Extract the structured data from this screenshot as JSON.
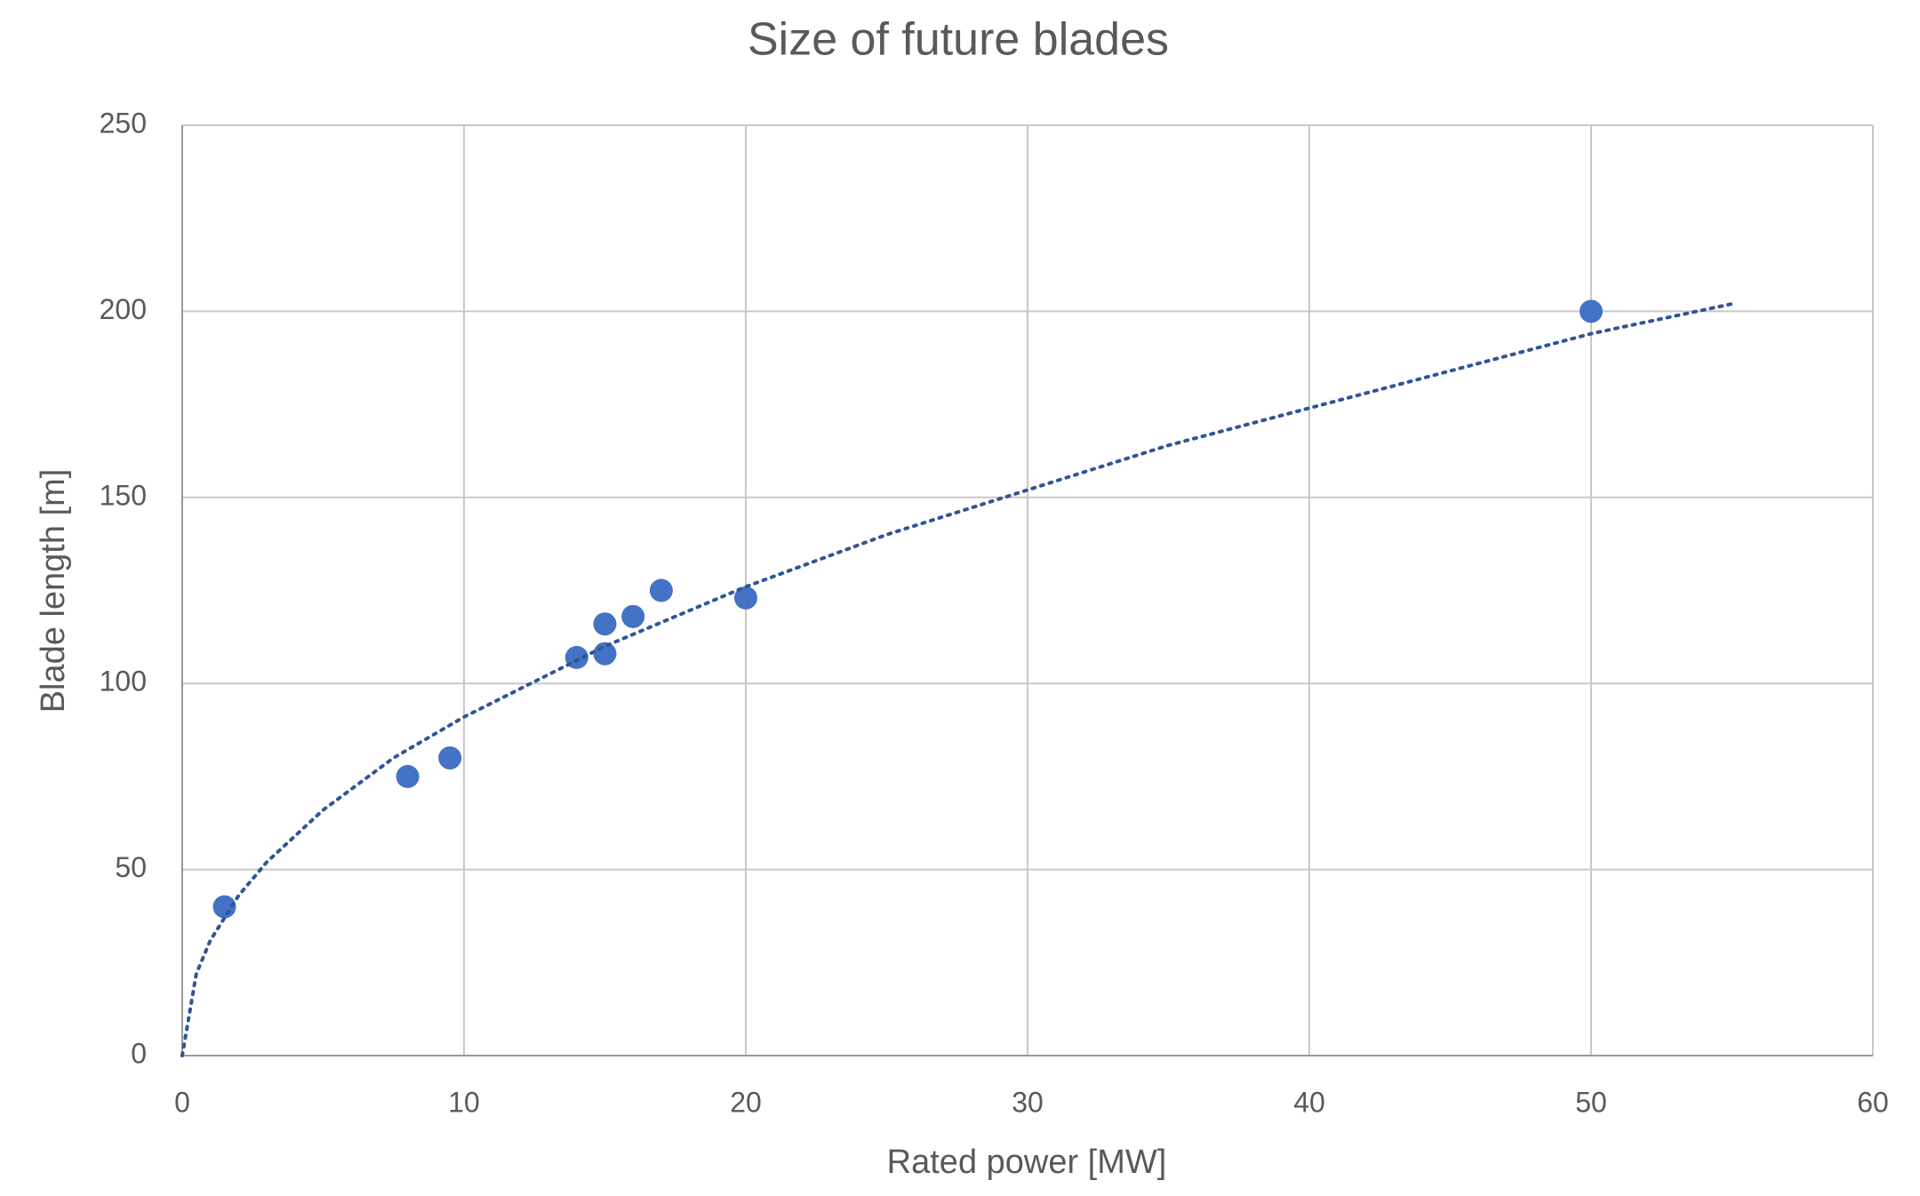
{
  "chart_data": {
    "type": "scatter",
    "title": "Size of future blades",
    "x_label": "Rated power [MW]",
    "y_label": "Blade length [m]",
    "xlim": [
      0,
      60
    ],
    "xticks": [
      0,
      10,
      20,
      30,
      40,
      50,
      60
    ],
    "ylim": [
      0,
      250
    ],
    "yticks": [
      0,
      50,
      100,
      150,
      200,
      250
    ],
    "grid": true,
    "series": [
      {
        "color": "#4472c4",
        "marker": "circle",
        "x": [
          1.5,
          8,
          9.5,
          14,
          15,
          15,
          16,
          17,
          20,
          50
        ],
        "values": [
          40,
          75,
          80,
          107,
          108,
          116,
          118,
          125,
          123,
          200
        ]
      },
      {
        "color": "#2f5597",
        "marker": "none",
        "line": "dotted",
        "x": [
          0,
          0.5,
          1,
          2,
          3,
          5,
          7.5,
          10,
          15,
          20,
          25,
          30,
          35,
          40,
          45,
          50,
          55
        ],
        "values": [
          0,
          22,
          31,
          43,
          52,
          66,
          80,
          91,
          110,
          126,
          140,
          152,
          164,
          174,
          184,
          194,
          202
        ]
      }
    ]
  }
}
